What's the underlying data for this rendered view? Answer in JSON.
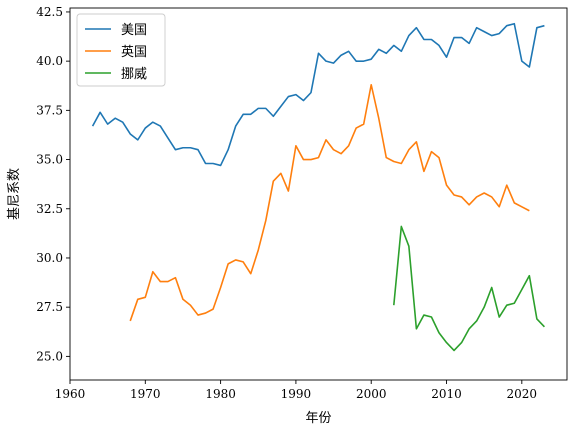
{
  "chart_data": {
    "type": "line",
    "title": "",
    "xlabel": "年份",
    "ylabel": "基尼系数",
    "xlim": [
      1960,
      2026
    ],
    "ylim": [
      23.8,
      42.7
    ],
    "xticks": [
      1960,
      1970,
      1980,
      1990,
      2000,
      2010,
      2020
    ],
    "xtick_labels": [
      "1960",
      "1970",
      "1980",
      "1990",
      "2000",
      "2010",
      "2020"
    ],
    "yticks": [
      25.0,
      27.5,
      30.0,
      32.5,
      35.0,
      37.5,
      40.0,
      42.5
    ],
    "ytick_labels": [
      "25.0",
      "27.5",
      "30.0",
      "32.5",
      "35.0",
      "37.5",
      "40.0",
      "42.5"
    ],
    "grid": false,
    "legend_position": "upper-left",
    "series": [
      {
        "name": "美国",
        "color": "#1f77b4",
        "x": [
          1963,
          1964,
          1965,
          1966,
          1967,
          1968,
          1969,
          1970,
          1971,
          1972,
          1973,
          1974,
          1975,
          1976,
          1977,
          1978,
          1979,
          1980,
          1981,
          1982,
          1983,
          1984,
          1985,
          1986,
          1987,
          1988,
          1989,
          1990,
          1991,
          1992,
          1993,
          1994,
          1995,
          1996,
          1997,
          1998,
          1999,
          2000,
          2001,
          2002,
          2003,
          2004,
          2005,
          2006,
          2007,
          2008,
          2009,
          2010,
          2011,
          2012,
          2013,
          2014,
          2015,
          2016,
          2017,
          2018,
          2019,
          2020,
          2021,
          2022,
          2023
        ],
        "values": [
          36.7,
          37.4,
          36.8,
          37.1,
          36.9,
          36.3,
          36.0,
          36.6,
          36.9,
          36.7,
          36.1,
          35.5,
          35.6,
          35.6,
          35.5,
          34.8,
          34.8,
          34.7,
          35.5,
          36.7,
          37.3,
          37.3,
          37.6,
          37.6,
          37.2,
          37.7,
          38.2,
          38.3,
          38.0,
          38.4,
          40.4,
          40.0,
          39.9,
          40.3,
          40.5,
          40.0,
          40.0,
          40.1,
          40.6,
          40.4,
          40.8,
          40.5,
          41.3,
          41.7,
          41.1,
          41.1,
          40.8,
          40.2,
          41.2,
          41.2,
          40.9,
          41.7,
          41.5,
          41.3,
          41.4,
          41.8,
          41.9,
          40.0,
          39.7,
          41.7,
          41.8
        ]
      },
      {
        "name": "英国",
        "color": "#ff7f0e",
        "x": [
          1968,
          1969,
          1970,
          1971,
          1972,
          1973,
          1974,
          1975,
          1976,
          1977,
          1978,
          1979,
          1980,
          1981,
          1982,
          1983,
          1984,
          1985,
          1986,
          1987,
          1988,
          1989,
          1990,
          1991,
          1992,
          1993,
          1994,
          1995,
          1996,
          1997,
          1998,
          1999,
          2000,
          2001,
          2002,
          2003,
          2004,
          2005,
          2006,
          2007,
          2008,
          2009,
          2010,
          2011,
          2012,
          2013,
          2014,
          2015,
          2016,
          2017,
          2018,
          2019,
          2020,
          2021
        ],
        "values": [
          26.8,
          27.9,
          28.0,
          29.3,
          28.8,
          28.8,
          29.0,
          27.9,
          27.6,
          27.1,
          27.2,
          27.4,
          28.5,
          29.7,
          29.9,
          29.8,
          29.2,
          30.4,
          31.9,
          33.9,
          34.3,
          33.4,
          35.7,
          35.0,
          35.0,
          35.1,
          36.0,
          35.5,
          35.3,
          35.7,
          36.6,
          36.8,
          38.8,
          37.1,
          35.1,
          34.9,
          34.8,
          35.5,
          35.9,
          34.4,
          35.4,
          35.1,
          33.7,
          33.2,
          33.1,
          32.7,
          33.1,
          33.3,
          33.1,
          32.6,
          33.7,
          32.8,
          32.6,
          32.4
        ]
      },
      {
        "name": "挪威",
        "color": "#2ca02c",
        "x": [
          2003,
          2004,
          2005,
          2006,
          2007,
          2008,
          2009,
          2010,
          2011,
          2012,
          2013,
          2014,
          2015,
          2016,
          2017,
          2018,
          2019,
          2020,
          2021,
          2022,
          2023
        ],
        "values": [
          27.6,
          31.6,
          30.6,
          26.4,
          27.1,
          27.0,
          26.2,
          25.7,
          25.3,
          25.7,
          26.4,
          26.8,
          27.5,
          28.5,
          27.0,
          27.6,
          27.7,
          28.4,
          29.1,
          26.9,
          26.5
        ]
      }
    ]
  }
}
